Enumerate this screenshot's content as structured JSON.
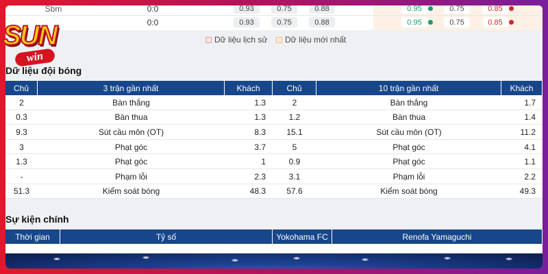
{
  "logo": {
    "main": "SUN",
    "sub": "win"
  },
  "odds_rows": [
    {
      "name": "Sbm",
      "score": "0:0",
      "early": [
        "0.93",
        "0.75",
        "0.88"
      ],
      "live": [
        "0.95",
        "0.75",
        "0.85"
      ]
    },
    {
      "score": "0:0",
      "early": [
        "0.93",
        "0.75",
        "0.88"
      ],
      "live": [
        "0.95",
        "0.75",
        "0.85"
      ]
    }
  ],
  "legend": [
    "Dữ liệu lịch sử",
    "Dữ liệu mới nhất"
  ],
  "team_data": {
    "title": "Dữ liệu đội bóng",
    "header": [
      "Chủ",
      "3 trận gần nhất",
      "Khách",
      "Chủ",
      "10 trận gần nhất",
      "Khách"
    ],
    "rows": [
      [
        "2",
        "Bàn thắng",
        "1.3",
        "2",
        "Bàn thắng",
        "1.7"
      ],
      [
        "0.3",
        "Bàn thua",
        "1.3",
        "1.2",
        "Bàn thua",
        "1.4"
      ],
      [
        "9.3",
        "Sút cầu môn (OT)",
        "8.3",
        "15.1",
        "Sút cầu môn (OT)",
        "11.2"
      ],
      [
        "3",
        "Phạt góc",
        "3.7",
        "5",
        "Phạt góc",
        "4.1"
      ],
      [
        "1.3",
        "Phạt góc",
        "1",
        "0.9",
        "Phạt góc",
        "1.1"
      ],
      [
        "-",
        "Phạm lỗi",
        "2.3",
        "3.1",
        "Phạm lỗi",
        "2.2"
      ],
      [
        "51.3",
        "Kiểm soát bóng",
        "48.3",
        "57.6",
        "Kiểm soát bóng",
        "49.3"
      ]
    ]
  },
  "events": {
    "title": "Sự kiện chính",
    "header": [
      "Thời gian",
      "Tỷ số",
      "Yokohama FC",
      "Renofa Yamaguchi"
    ]
  }
}
